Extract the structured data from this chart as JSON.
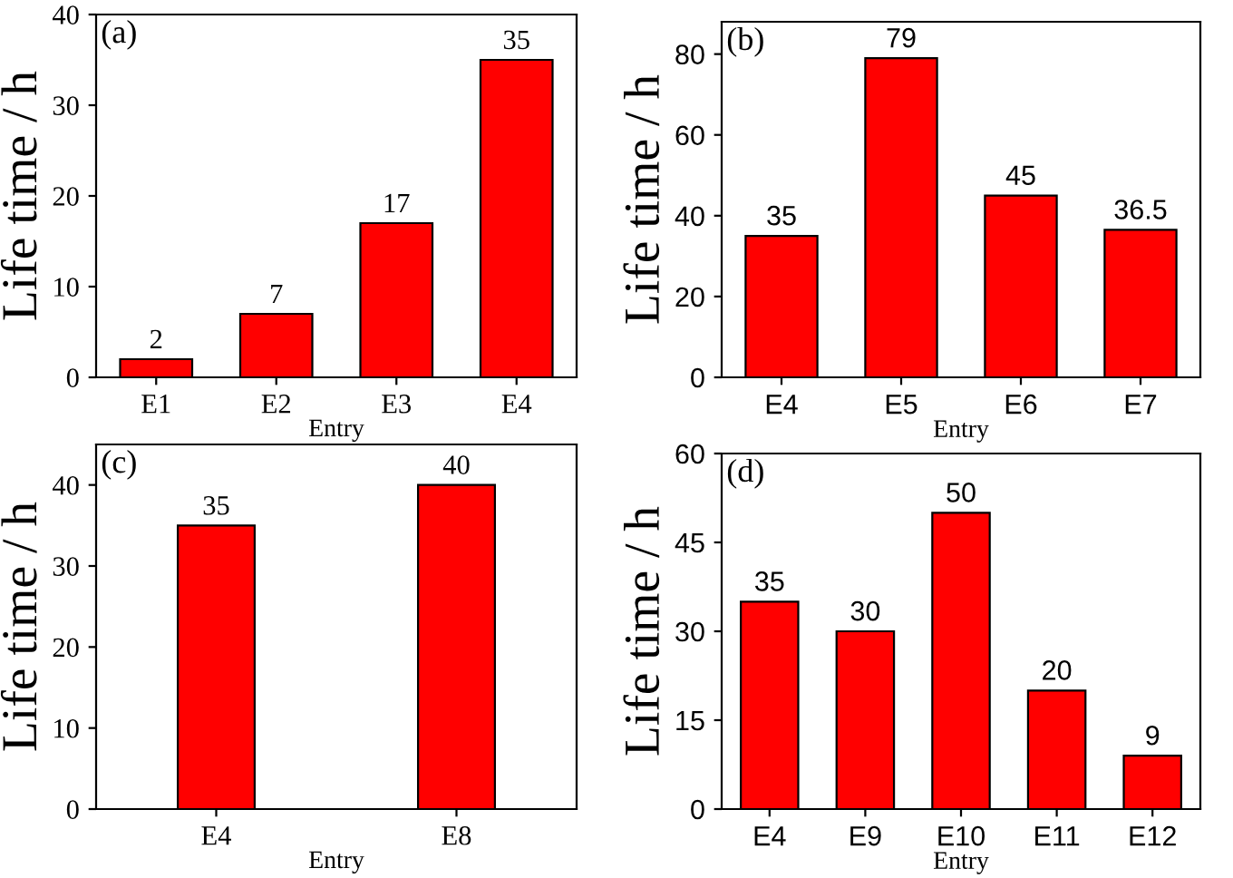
{
  "chart_data": [
    {
      "type": "bar",
      "title": "(a)",
      "xlabel": "Entry",
      "ylabel": "Life time / h",
      "categories": [
        "E1",
        "E2",
        "E3",
        "E4"
      ],
      "values": [
        2,
        7,
        17,
        35
      ],
      "color": "#ff0000",
      "ylim": [
        0,
        40
      ],
      "yticks": [
        0,
        10,
        20,
        30,
        40
      ],
      "data_labels": true,
      "grid": false,
      "legend": false
    },
    {
      "type": "bar",
      "title": "(b)",
      "xlabel": "Entry",
      "ylabel": "Life time / h",
      "categories": [
        "E4",
        "E5",
        "E6",
        "E7"
      ],
      "values": [
        35,
        79,
        45,
        36.5
      ],
      "color": "#ff0000",
      "ylim": [
        0,
        88
      ],
      "yticks": [
        0,
        20,
        40,
        60,
        80
      ],
      "data_labels": true,
      "grid": false,
      "legend": false
    },
    {
      "type": "bar",
      "title": "(c)",
      "xlabel": "Entry",
      "ylabel": "Life time / h",
      "categories": [
        "E4",
        "E8"
      ],
      "values": [
        35,
        40
      ],
      "color": "#ff0000",
      "ylim": [
        0,
        45
      ],
      "yticks": [
        0,
        10,
        20,
        30,
        40
      ],
      "data_labels": true,
      "grid": false,
      "legend": false
    },
    {
      "type": "bar",
      "title": "(d)",
      "xlabel": "Entry",
      "ylabel": "Life time / h",
      "categories": [
        "E4",
        "E9",
        "E10",
        "E11",
        "E12"
      ],
      "values": [
        35,
        30,
        50,
        20,
        9
      ],
      "color": "#ff0000",
      "ylim": [
        0,
        60
      ],
      "yticks": [
        0,
        15,
        30,
        45,
        60
      ],
      "data_labels": true,
      "grid": false,
      "legend": false
    }
  ]
}
